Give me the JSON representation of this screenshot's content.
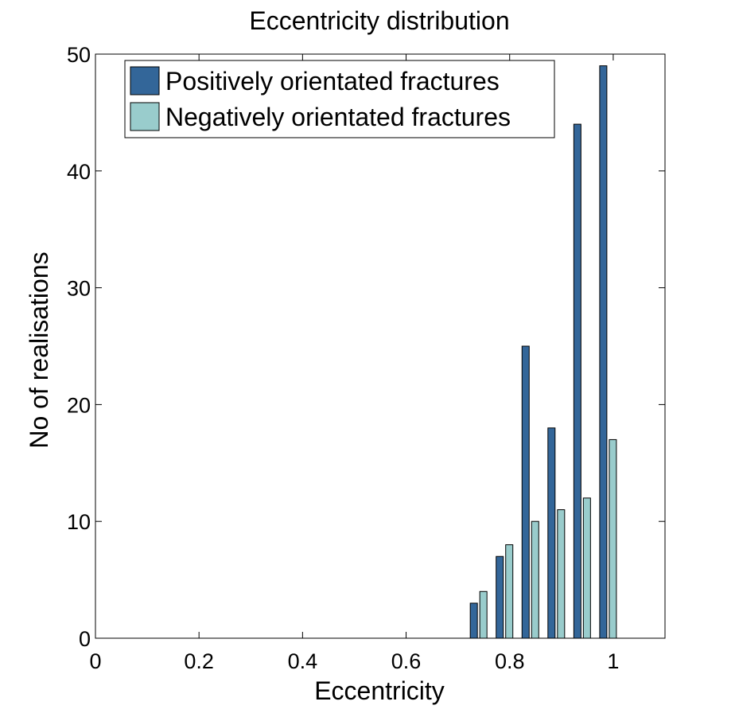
{
  "chart_data": {
    "type": "bar",
    "title": "Eccentricity distribution",
    "xlabel": "Eccentricity",
    "ylabel": "No of realisations",
    "xlim": [
      0,
      1.1
    ],
    "ylim": [
      0,
      50
    ],
    "xticks": [
      "0",
      "0.2",
      "0.4",
      "0.6",
      "0.8",
      "1"
    ],
    "yticks": [
      "0",
      "10",
      "20",
      "30",
      "40",
      "50"
    ],
    "legend_position": "top-left",
    "grid": false,
    "x": [
      0.74,
      0.79,
      0.84,
      0.89,
      0.94,
      0.99
    ],
    "series": [
      {
        "name": "Positively orientated fractures",
        "color": "#336699",
        "values": [
          3,
          7,
          25,
          18,
          44,
          49
        ]
      },
      {
        "name": "Negatively orientated fractures",
        "color": "#99CCCC",
        "values": [
          4,
          8,
          10,
          11,
          12,
          17
        ]
      }
    ]
  }
}
